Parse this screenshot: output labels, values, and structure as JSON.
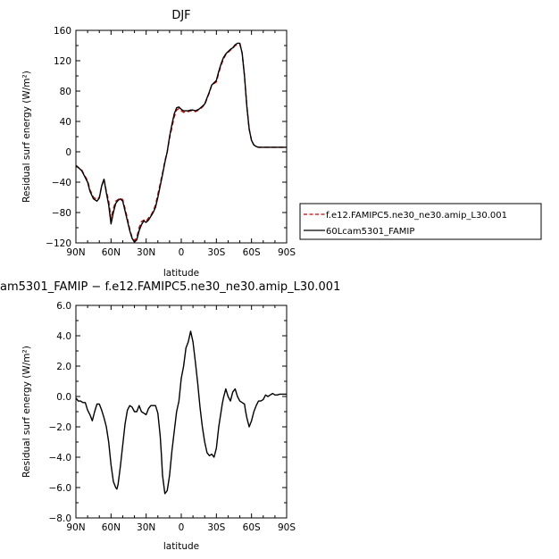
{
  "chart_data": [
    {
      "type": "line",
      "title": "DJF",
      "xlabel": "latitude",
      "ylabel": "Residual surf energy (W/m²)",
      "x_ticks": [
        {
          "value": 90,
          "label": "90N"
        },
        {
          "value": 60,
          "label": "60N"
        },
        {
          "value": 30,
          "label": "30N"
        },
        {
          "value": 0,
          "label": "0"
        },
        {
          "value": -30,
          "label": "30S"
        },
        {
          "value": -60,
          "label": "60S"
        },
        {
          "value": -90,
          "label": "90S"
        }
      ],
      "xlim": [
        90,
        -90
      ],
      "ylim": [
        -120,
        160
      ],
      "y_ticks": [
        {
          "value": -120,
          "label": "−120"
        },
        {
          "value": -80,
          "label": "−80"
        },
        {
          "value": -40,
          "label": "−40"
        },
        {
          "value": 0,
          "label": "0"
        },
        {
          "value": 40,
          "label": "40"
        },
        {
          "value": 80,
          "label": "80"
        },
        {
          "value": 120,
          "label": "120"
        },
        {
          "value": 160,
          "label": "160"
        }
      ],
      "legend_position": "right-outside",
      "series": [
        {
          "name": "f.e12.FAMIPC5.ne30_ne30.amip_L30.001",
          "color": "#cc0000",
          "dash": "dashed",
          "x": [
            90,
            87,
            85,
            83,
            80,
            78,
            75,
            72,
            70,
            68,
            66,
            64,
            62,
            60,
            58,
            56,
            54,
            52,
            50,
            48,
            46,
            44,
            42,
            40,
            38,
            36,
            34,
            32,
            30,
            28,
            26,
            24,
            22,
            20,
            18,
            16,
            14,
            12,
            10,
            8,
            6,
            4,
            2,
            0,
            -2,
            -4,
            -6,
            -8,
            -10,
            -12,
            -15,
            -18,
            -20,
            -22,
            -24,
            -26,
            -28,
            -30,
            -32,
            -34,
            -36,
            -38,
            -40,
            -42,
            -44,
            -46,
            -48,
            -50,
            -52,
            -54,
            -56,
            -58,
            -60,
            -62,
            -64,
            -66,
            -68,
            -70,
            -72,
            -75,
            -78,
            -80,
            -82,
            -85,
            -88,
            -90
          ],
          "y": [
            -18,
            -22,
            -24,
            -30,
            -38,
            -50,
            -60,
            -63,
            -60,
            -45,
            -36,
            -52,
            -65,
            -88,
            -75,
            -65,
            -63,
            -61,
            -63,
            -75,
            -88,
            -102,
            -113,
            -117,
            -113,
            -100,
            -92,
            -90,
            -92,
            -87,
            -84,
            -78,
            -70,
            -56,
            -42,
            -28,
            -12,
            0,
            18,
            32,
            46,
            55,
            57,
            54,
            52,
            53,
            53,
            54,
            54,
            53,
            55,
            59,
            62,
            70,
            78,
            88,
            90,
            92,
            104,
            114,
            122,
            128,
            131,
            134,
            136,
            140,
            141,
            142,
            130,
            100,
            60,
            30,
            15,
            9,
            7,
            6,
            6,
            6,
            6,
            6,
            6,
            6,
            6,
            6,
            6,
            6
          ]
        },
        {
          "name": "60Lcam5301_FAMIP",
          "color": "#000000",
          "dash": "solid",
          "x": [
            90,
            87,
            85,
            83,
            80,
            78,
            75,
            72,
            70,
            68,
            66,
            64,
            62,
            60,
            58,
            56,
            54,
            52,
            50,
            48,
            46,
            44,
            42,
            40,
            38,
            36,
            34,
            32,
            30,
            28,
            26,
            24,
            22,
            20,
            18,
            16,
            14,
            12,
            10,
            8,
            6,
            4,
            2,
            0,
            -2,
            -4,
            -6,
            -8,
            -10,
            -12,
            -15,
            -18,
            -20,
            -22,
            -24,
            -26,
            -28,
            -30,
            -32,
            -34,
            -36,
            -38,
            -40,
            -42,
            -44,
            -46,
            -48,
            -50,
            -52,
            -54,
            -56,
            -58,
            -60,
            -62,
            -64,
            -66,
            -68,
            -70,
            -72,
            -75,
            -78,
            -80,
            -82,
            -85,
            -88,
            -90
          ],
          "y": [
            -18,
            -22,
            -25,
            -31,
            -40,
            -52,
            -62,
            -65,
            -61,
            -45,
            -36,
            -54,
            -70,
            -95,
            -80,
            -68,
            -64,
            -62,
            -65,
            -78,
            -91,
            -104,
            -114,
            -119,
            -116,
            -104,
            -96,
            -91,
            -93,
            -90,
            -85,
            -80,
            -73,
            -60,
            -45,
            -30,
            -14,
            0,
            20,
            36,
            50,
            58,
            59,
            56,
            54,
            54,
            54,
            55,
            55,
            54,
            56,
            60,
            63,
            71,
            79,
            88,
            91,
            94,
            106,
            116,
            124,
            129,
            132,
            135,
            137,
            141,
            143,
            143,
            130,
            100,
            60,
            30,
            15,
            9,
            7,
            6,
            6,
            6,
            6,
            6,
            6,
            6,
            6,
            6,
            6,
            6
          ]
        }
      ]
    },
    {
      "type": "line",
      "title": "am5301_FAMIP − f.e12.FAMIPC5.ne30_ne30.amip_L30.001",
      "xlabel": "latitude",
      "ylabel": "Residual surf energy (W/m²)",
      "x_ticks": [
        {
          "value": 90,
          "label": "90N"
        },
        {
          "value": 60,
          "label": "60N"
        },
        {
          "value": 30,
          "label": "30N"
        },
        {
          "value": 0,
          "label": "0"
        },
        {
          "value": -30,
          "label": "30S"
        },
        {
          "value": -60,
          "label": "60S"
        },
        {
          "value": -90,
          "label": "90S"
        }
      ],
      "xlim": [
        90,
        -90
      ],
      "ylim": [
        -8,
        6
      ],
      "y_ticks": [
        {
          "value": -8,
          "label": "−8.0"
        },
        {
          "value": -6,
          "label": "−6.0"
        },
        {
          "value": -4,
          "label": "−4.0"
        },
        {
          "value": -2,
          "label": "−2.0"
        },
        {
          "value": 0,
          "label": "0.0"
        },
        {
          "value": 2,
          "label": "2.0"
        },
        {
          "value": 4,
          "label": "4.0"
        },
        {
          "value": 6,
          "label": "6.0"
        }
      ],
      "series": [
        {
          "color": "#000000",
          "dash": "solid",
          "x": [
            90,
            88,
            86,
            84,
            82,
            80,
            78,
            76,
            74,
            72,
            70,
            68,
            66,
            64,
            62,
            60,
            58,
            56,
            55,
            54,
            52,
            50,
            48,
            46,
            44,
            42,
            40,
            38,
            36,
            34,
            32,
            30,
            28,
            26,
            24,
            22,
            20,
            18,
            17,
            16,
            14,
            12,
            10,
            8,
            6,
            4,
            2,
            0,
            -2,
            -4,
            -5,
            -6,
            -8,
            -10,
            -12,
            -14,
            -16,
            -18,
            -20,
            -22,
            -24,
            -26,
            -28,
            -30,
            -32,
            -34,
            -35,
            -36,
            -38,
            -40,
            -42,
            -44,
            -46,
            -48,
            -50,
            -52,
            -54,
            -55,
            -56,
            -58,
            -60,
            -62,
            -64,
            -66,
            -68,
            -70,
            -72,
            -74,
            -76,
            -78,
            -80,
            -82,
            -84,
            -86,
            -88,
            -90
          ],
          "y": [
            -0.1,
            -0.3,
            -0.3,
            -0.4,
            -0.4,
            -0.9,
            -1.2,
            -1.6,
            -1.0,
            -0.5,
            -0.5,
            -0.9,
            -1.4,
            -2.0,
            -3.0,
            -4.5,
            -5.6,
            -6.0,
            -6.1,
            -5.8,
            -4.6,
            -3.2,
            -1.8,
            -0.9,
            -0.6,
            -0.7,
            -1.0,
            -1.0,
            -0.6,
            -1.0,
            -1.1,
            -1.2,
            -0.8,
            -0.6,
            -0.6,
            -0.6,
            -1.1,
            -2.6,
            -3.8,
            -5.2,
            -6.4,
            -6.2,
            -5.2,
            -3.6,
            -2.3,
            -1.0,
            -0.3,
            1.2,
            2.0,
            3.2,
            3.4,
            3.6,
            4.3,
            3.6,
            2.3,
            0.9,
            -0.7,
            -2.0,
            -3.0,
            -3.7,
            -3.9,
            -3.8,
            -4.0,
            -3.4,
            -2.0,
            -1.0,
            -0.5,
            -0.1,
            0.5,
            0.0,
            -0.3,
            0.3,
            0.5,
            0.0,
            -0.3,
            -0.4,
            -0.5,
            -1.0,
            -1.4,
            -2.0,
            -1.6,
            -1.0,
            -0.6,
            -0.3,
            -0.3,
            -0.2,
            0.1,
            0.0,
            0.1,
            0.2,
            0.1,
            0.1,
            0.15,
            0.15,
            0.15,
            0.15
          ]
        }
      ]
    }
  ]
}
